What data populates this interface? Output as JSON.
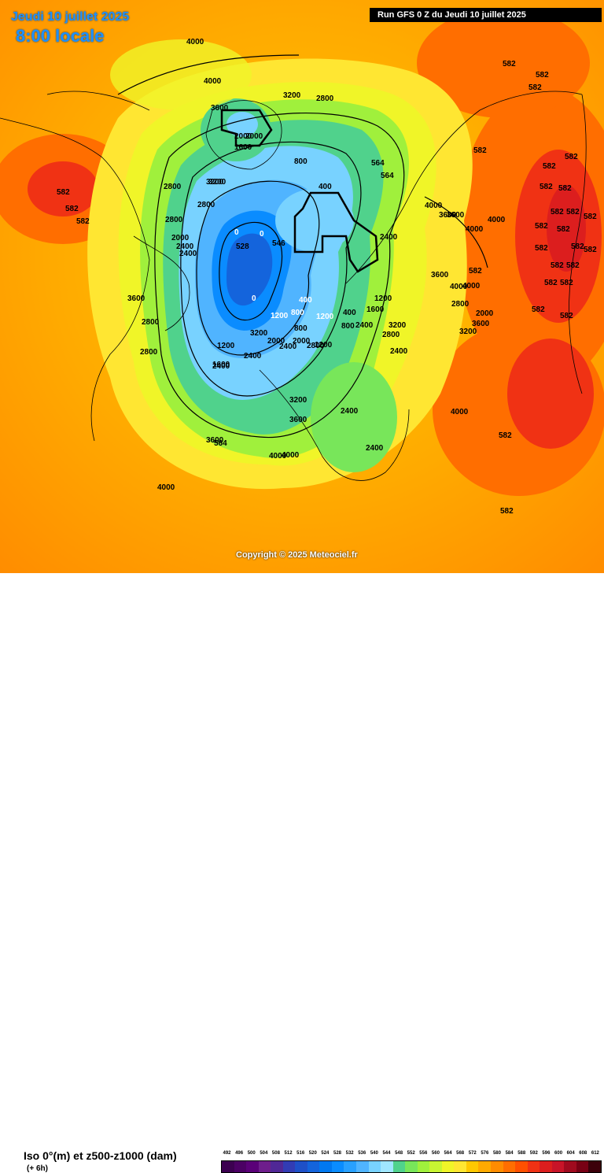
{
  "header": {
    "date_title": "Jeudi 10 juillet 2025",
    "time_title": "8:00 locale",
    "run_banner": "Run GFS 0 Z du Jeudi 10 juillet 2025"
  },
  "copyright": "Copyright © 2025 Meteociel.fr",
  "footer": {
    "param_title": "Iso 0°(m) et z500-z1000 (dam)",
    "step": "(+ 6h)"
  },
  "scale": {
    "values": [
      "492",
      "496",
      "500",
      "504",
      "508",
      "512",
      "516",
      "520",
      "524",
      "528",
      "532",
      "536",
      "540",
      "544",
      "548",
      "552",
      "556",
      "560",
      "564",
      "568",
      "572",
      "576",
      "580",
      "584",
      "588",
      "592",
      "596",
      "600",
      "604",
      "608",
      "612"
    ],
    "colors": [
      "#3c0050",
      "#4b0064",
      "#5a0078",
      "#6e1e8c",
      "#502896",
      "#323cb4",
      "#1e50c8",
      "#1464dc",
      "#0078f0",
      "#0a8cff",
      "#28a0ff",
      "#50b4ff",
      "#78d2ff",
      "#a0e6ff",
      "#50d28c",
      "#78e65a",
      "#a0f03c",
      "#c8f532",
      "#f0f528",
      "#ffe632",
      "#ffc800",
      "#ffaa00",
      "#ff8c00",
      "#ff6e00",
      "#ff5000",
      "#f03214",
      "#dc1e1e",
      "#c81428",
      "#a00a1e",
      "#780014",
      "#3c000a"
    ]
  },
  "map": {
    "iso0_labels": [
      "4000",
      "4000",
      "3600",
      "3200",
      "2800",
      "2800",
      "3200",
      "2000",
      "1600",
      "2000",
      "2800",
      "3200",
      "2800",
      "2400",
      "2000",
      "2400",
      "2800",
      "1600",
      "800",
      "400",
      "0",
      "0",
      "0",
      "400",
      "800",
      "1200",
      "2000",
      "2400",
      "2800",
      "3200",
      "3600",
      "4000",
      "4000",
      "3600",
      "3200",
      "2400",
      "1200",
      "800",
      "400",
      "1200",
      "2400",
      "3200",
      "2400",
      "3600",
      "4000",
      "4000",
      "2400",
      "4000",
      "3600",
      "4000",
      "3600",
      "2800",
      "2000",
      "800",
      "1200",
      "2000",
      "2400",
      "2800",
      "3600",
      "4000",
      "4000",
      "3600",
      "3200",
      "2800",
      "4000",
      "2400",
      "1600",
      "1200",
      "2400"
    ],
    "thickness_labels": [
      "582",
      "582",
      "582",
      "582",
      "582",
      "582",
      "582",
      "582",
      "582",
      "582",
      "582",
      "582",
      "582",
      "582",
      "582",
      "582",
      "582",
      "582",
      "582",
      "582",
      "582",
      "582",
      "582",
      "582",
      "582",
      "582",
      "582",
      "582",
      "528",
      "546",
      "564",
      "564",
      "564"
    ]
  }
}
